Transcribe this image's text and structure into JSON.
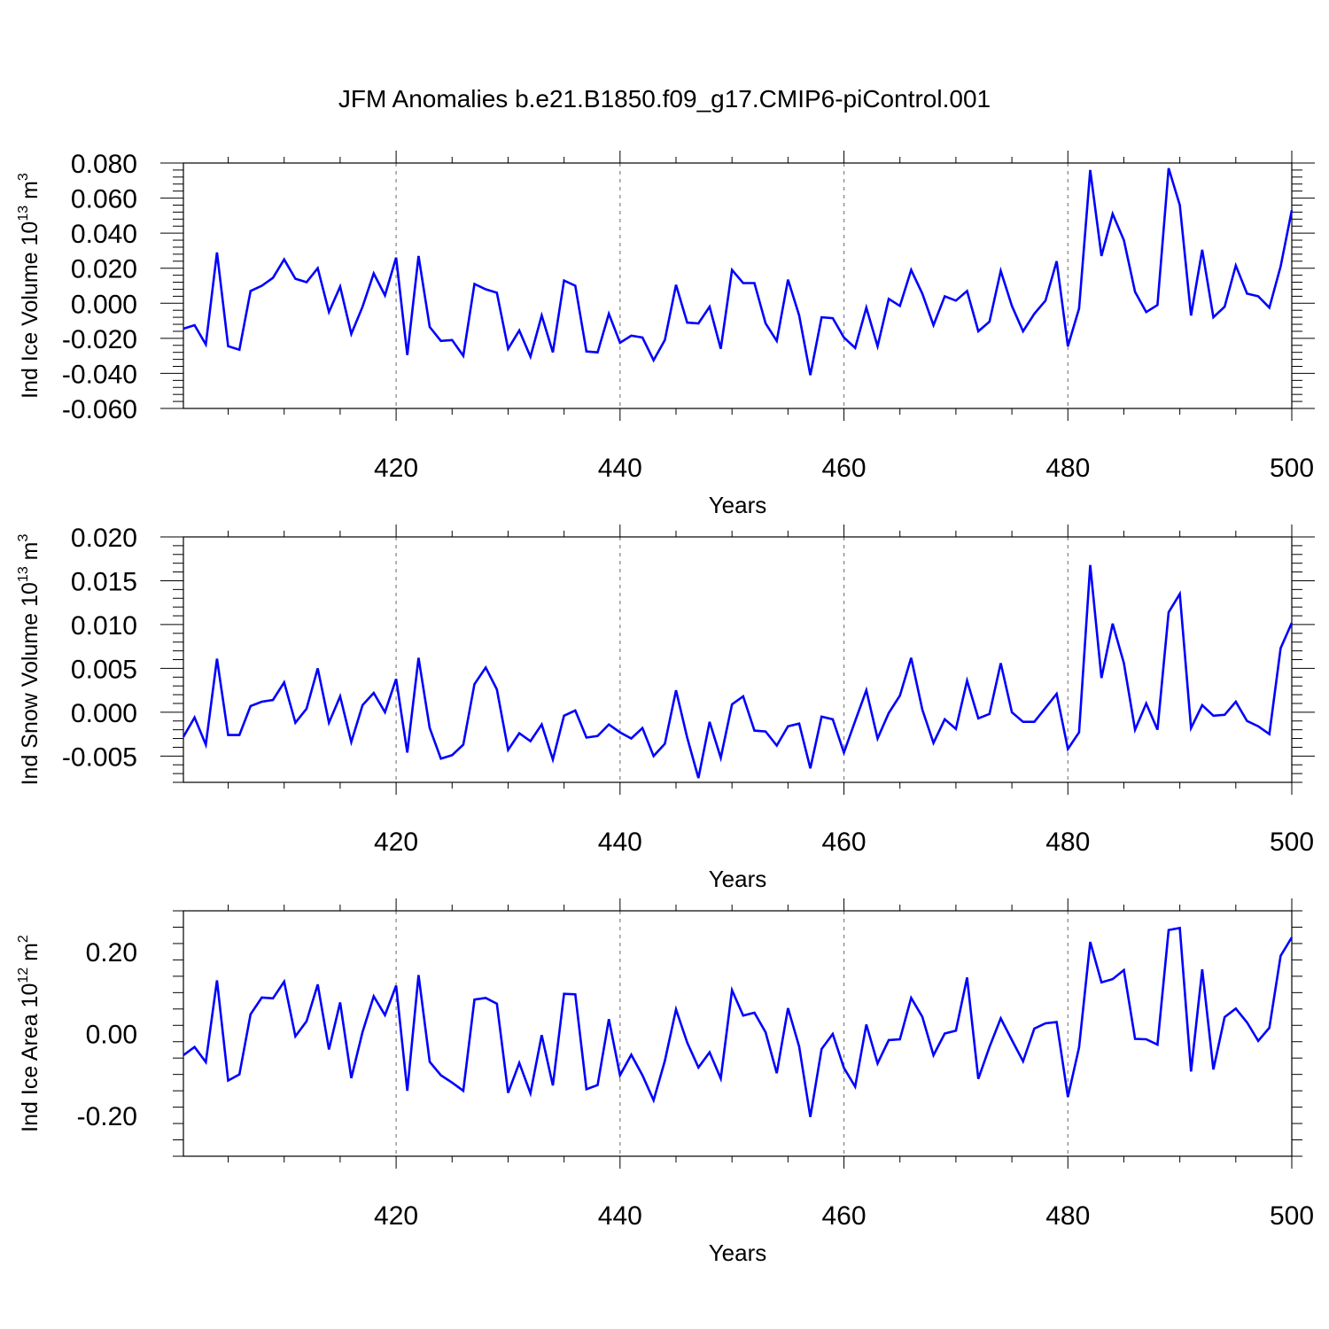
{
  "title": "JFM Anomalies b.e21.B1850.f09_g17.CMIP6-piControl.001",
  "colors": {
    "line": "#0000ff",
    "axis": "#000000",
    "grid": "#808080"
  },
  "chart_data": [
    {
      "type": "line",
      "ylabel_main": "Ind Ice Volume 10",
      "ylabel_exp": "13",
      "ylabel_unit": " m",
      "ylabel_unit_exp": "3",
      "xlabel": "Years",
      "xlim": [
        401,
        500
      ],
      "ylim": [
        -0.06,
        0.08
      ],
      "yticks": [
        -0.06,
        -0.04,
        -0.02,
        0.0,
        0.02,
        0.04,
        0.06,
        0.08
      ],
      "ytick_labels": [
        "-0.060",
        "-0.040",
        "-0.020",
        "0.000",
        "0.020",
        "0.040",
        "0.060",
        "0.080"
      ],
      "xticks": [
        420,
        440,
        460,
        480,
        500
      ],
      "xtick_labels": [
        "420",
        "440",
        "460",
        "480",
        "500"
      ],
      "series": [
        {
          "name": "Ind Ice Volume",
          "x_start": 401,
          "values": [
            -0.0145,
            -0.0125,
            -0.0235,
            0.029,
            -0.0245,
            -0.0265,
            0.007,
            0.01,
            0.0145,
            0.025,
            0.014,
            0.012,
            0.02,
            -0.005,
            0.0095,
            -0.0175,
            -0.002,
            0.017,
            0.0045,
            0.026,
            -0.0295,
            0.027,
            -0.0135,
            -0.0215,
            -0.021,
            -0.03,
            0.011,
            0.008,
            0.006,
            -0.026,
            -0.0155,
            -0.0305,
            -0.007,
            -0.028,
            0.013,
            0.01,
            -0.0275,
            -0.028,
            -0.006,
            -0.0225,
            -0.0185,
            -0.0195,
            -0.0325,
            -0.021,
            0.0105,
            -0.011,
            -0.0115,
            -0.002,
            -0.026,
            0.019,
            0.0115,
            0.0115,
            -0.0115,
            -0.0215,
            0.0135,
            -0.007,
            -0.041,
            -0.008,
            -0.0085,
            -0.0195,
            -0.0255,
            -0.0025,
            -0.0245,
            0.0025,
            -0.0015,
            0.019,
            0.0055,
            -0.0125,
            0.004,
            0.0015,
            0.007,
            -0.016,
            -0.0105,
            0.0185,
            -0.0015,
            -0.016,
            -0.006,
            0.0015,
            0.024,
            -0.0245,
            -0.003,
            0.076,
            0.027,
            0.051,
            0.036,
            0.0065,
            -0.005,
            -0.001,
            0.077,
            0.056,
            -0.007,
            0.0305,
            -0.008,
            -0.002,
            0.0215,
            0.0055,
            0.004,
            -0.0025,
            0.021,
            0.053
          ]
        }
      ]
    },
    {
      "type": "line",
      "ylabel_main": "Ind Snow Volume 10",
      "ylabel_exp": "13",
      "ylabel_unit": " m",
      "ylabel_unit_exp": "3",
      "xlabel": "Years",
      "xlim": [
        401,
        500
      ],
      "ylim": [
        -0.008,
        0.02
      ],
      "yticks": [
        -0.005,
        0.0,
        0.005,
        0.01,
        0.015,
        0.02
      ],
      "ytick_labels": [
        "-0.005",
        "0.000",
        "0.005",
        "0.010",
        "0.015",
        "0.020"
      ],
      "xticks": [
        420,
        440,
        460,
        480,
        500
      ],
      "xtick_labels": [
        "420",
        "440",
        "460",
        "480",
        "500"
      ],
      "series": [
        {
          "name": "Ind Snow Volume",
          "x_start": 401,
          "values": [
            -0.0028,
            -0.0006,
            -0.0037,
            0.0061,
            -0.0026,
            -0.0026,
            0.0007,
            0.0012,
            0.0014,
            0.0034,
            -0.0012,
            0.0004,
            0.005,
            -0.0012,
            0.0018,
            -0.0034,
            0.0008,
            0.0022,
            0.0,
            0.0038,
            -0.0046,
            0.0062,
            -0.0018,
            -0.0053,
            -0.0049,
            -0.0037,
            0.0032,
            0.0051,
            0.0026,
            -0.0043,
            -0.0024,
            -0.0033,
            -0.0014,
            -0.0054,
            -0.0004,
            0.0002,
            -0.0029,
            -0.0027,
            -0.0014,
            -0.0023,
            -0.003,
            -0.0018,
            -0.005,
            -0.0036,
            0.0025,
            -0.0029,
            -0.0075,
            -0.0011,
            -0.0052,
            0.0009,
            0.0018,
            -0.0021,
            -0.0022,
            -0.0038,
            -0.0016,
            -0.0013,
            -0.0064,
            -0.0005,
            -0.0008,
            -0.0046,
            -0.001,
            0.0025,
            -0.003,
            -0.0001,
            0.0019,
            0.0062,
            0.0003,
            -0.0035,
            -0.0008,
            -0.0019,
            0.0036,
            -0.0007,
            -0.0002,
            0.0056,
            0.0,
            -0.0011,
            -0.0011,
            0.0005,
            0.0021,
            -0.0042,
            -0.0023,
            0.0168,
            0.0039,
            0.0101,
            0.0056,
            -0.002,
            0.001,
            -0.002,
            0.0114,
            0.0135,
            -0.0018,
            0.0008,
            -0.0004,
            -0.0003,
            0.0012,
            -0.001,
            -0.0016,
            -0.0025,
            0.0073,
            0.0102
          ]
        }
      ]
    },
    {
      "type": "line",
      "ylabel_main": "Ind Ice Area 10",
      "ylabel_exp": "12",
      "ylabel_unit": " m",
      "ylabel_unit_exp": "2",
      "xlabel": "Years",
      "xlim": [
        401,
        500
      ],
      "ylim": [
        -0.3,
        0.3
      ],
      "yticks": [
        -0.2,
        0.0,
        0.2
      ],
      "ytick_labels": [
        "-0.20",
        "0.00",
        "0.20"
      ],
      "xticks": [
        420,
        440,
        460,
        480,
        500
      ],
      "xtick_labels": [
        "420",
        "440",
        "460",
        "480",
        "500"
      ],
      "series": [
        {
          "name": "Ind Ice Area",
          "x_start": 401,
          "values": [
            -0.053,
            -0.033,
            -0.07,
            0.13,
            -0.115,
            -0.1,
            0.047,
            0.088,
            0.086,
            0.127,
            -0.007,
            0.03,
            0.12,
            -0.039,
            0.076,
            -0.109,
            0.004,
            0.091,
            0.045,
            0.117,
            -0.14,
            0.143,
            -0.069,
            -0.102,
            -0.12,
            -0.14,
            0.083,
            0.087,
            0.073,
            -0.145,
            -0.072,
            -0.146,
            -0.004,
            -0.127,
            0.097,
            0.096,
            -0.136,
            -0.126,
            0.035,
            -0.102,
            -0.052,
            -0.102,
            -0.163,
            -0.067,
            0.059,
            -0.022,
            -0.083,
            -0.046,
            -0.11,
            0.106,
            0.044,
            0.051,
            0.003,
            -0.097,
            0.062,
            -0.032,
            -0.204,
            -0.038,
            -0.001,
            -0.084,
            -0.13,
            0.022,
            -0.073,
            -0.016,
            -0.014,
            0.087,
            0.041,
            -0.053,
            0.0,
            0.007,
            0.137,
            -0.111,
            -0.033,
            0.037,
            -0.016,
            -0.068,
            0.012,
            0.025,
            0.028,
            -0.155,
            -0.034,
            0.224,
            0.125,
            0.133,
            0.155,
            -0.013,
            -0.014,
            -0.027,
            0.253,
            0.258,
            -0.093,
            0.157,
            -0.088,
            0.04,
            0.061,
            0.027,
            -0.018,
            0.014,
            0.19,
            0.235
          ]
        }
      ]
    }
  ]
}
